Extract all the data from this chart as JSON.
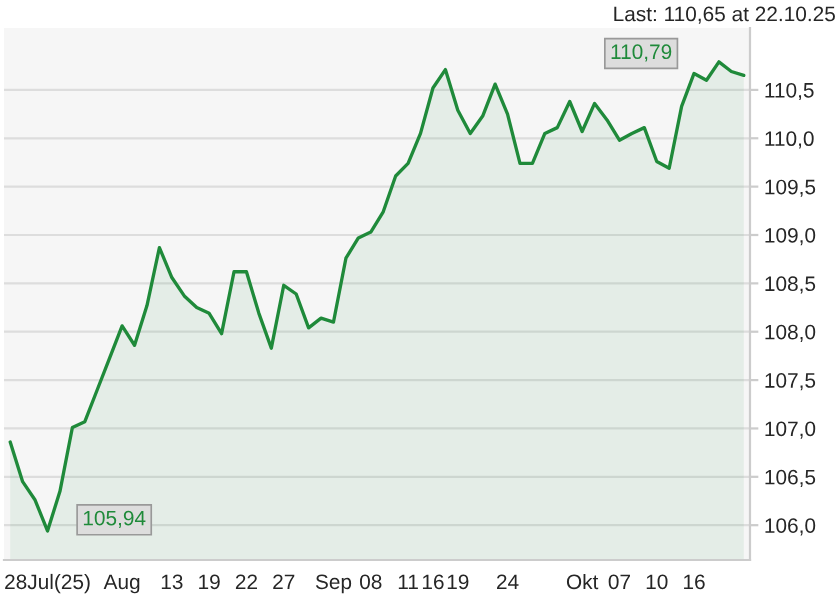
{
  "chart_data": {
    "type": "area",
    "categories": [
      null,
      null,
      null,
      "28Jul(25)",
      null,
      null,
      null,
      null,
      null,
      "Aug",
      null,
      null,
      null,
      "13",
      null,
      null,
      "19",
      null,
      null,
      "22",
      null,
      null,
      "27",
      null,
      null,
      null,
      "Sep",
      null,
      null,
      "08",
      null,
      null,
      "11",
      null,
      "16",
      null,
      "19",
      null,
      null,
      null,
      "24",
      null,
      null,
      null,
      null,
      null,
      "Okt",
      null,
      null,
      "07",
      null,
      null,
      "10",
      null,
      null,
      "16",
      null,
      null,
      null,
      null
    ],
    "series": [
      {
        "color": "#1f8a3a",
        "values": [
          106.86,
          106.45,
          106.26,
          105.94,
          106.35,
          107.01,
          107.07,
          107.4,
          107.73,
          108.06,
          107.86,
          108.27,
          108.87,
          108.56,
          108.37,
          108.25,
          108.19,
          107.98,
          108.62,
          108.62,
          108.19,
          107.83,
          108.48,
          108.39,
          108.04,
          108.14,
          108.1,
          108.76,
          108.97,
          109.03,
          109.24,
          109.61,
          109.74,
          110.05,
          110.52,
          110.71,
          110.29,
          110.05,
          110.23,
          110.56,
          110.25,
          109.74,
          109.74,
          110.05,
          110.11,
          110.38,
          110.07,
          110.36,
          110.19,
          109.98,
          110.05,
          110.11,
          109.76,
          109.69,
          110.33,
          110.67,
          110.6,
          110.79,
          110.69,
          110.65
        ]
      }
    ],
    "ylim": [
      105.64,
      111.14
    ],
    "yticks": [
      {
        "value": 106.0,
        "label": "106,0"
      },
      {
        "value": 106.5,
        "label": "106,5"
      },
      {
        "value": 107.0,
        "label": "107,0"
      },
      {
        "value": 107.5,
        "label": "107,5"
      },
      {
        "value": 108.0,
        "label": "108,0"
      },
      {
        "value": 108.5,
        "label": "108,5"
      },
      {
        "value": 109.0,
        "label": "109,0"
      },
      {
        "value": 109.5,
        "label": "109,5"
      },
      {
        "value": 110.0,
        "label": "110,0"
      },
      {
        "value": 110.5,
        "label": "110,5"
      }
    ],
    "grid": "y",
    "annotations": [
      "Last: 110,65 at 22.10.25",
      "110,79",
      "105,94"
    ]
  }
}
